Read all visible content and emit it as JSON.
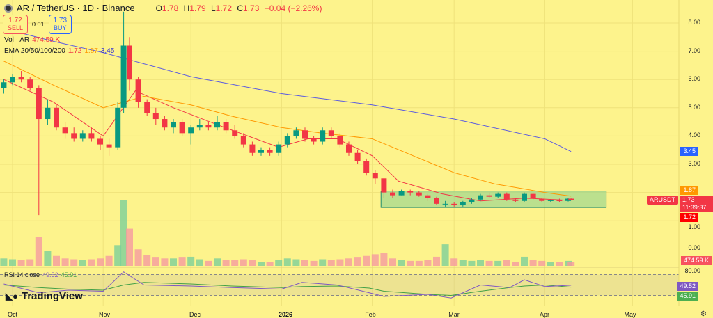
{
  "header": {
    "symbol": "AR / TetherUS · 1D · Binance",
    "o_label": "O",
    "o": "1.78",
    "h_label": "H",
    "h": "1.79",
    "l_label": "L",
    "l": "1.72",
    "c_label": "C",
    "c": "1.73",
    "change": "−0.04 (−2.26%)"
  },
  "trade": {
    "sell_price": "1.72",
    "sell_label": "SELL",
    "spread": "0.01",
    "buy_price": "1.73",
    "buy_label": "BUY"
  },
  "volume_legend": {
    "label": "Vol · AR",
    "value": "474.59 K"
  },
  "ema_legend": {
    "label": "EMA 20/50/100/200",
    "v1": "1.72",
    "v2": "1.87",
    "v3": "3.45"
  },
  "rsi_legend": {
    "label": "RSI 14 close",
    "rsi": "49.52",
    "ma": "45.91"
  },
  "price_axis": {
    "ticks": [
      "8.00",
      "7.00",
      "6.00",
      "5.00",
      "4.00",
      "3.00",
      "1.00"
    ],
    "volume_tick": "0.00",
    "rsi_tick": "80.00"
  },
  "tags": {
    "ema50": "1.87",
    "symbol": "ARUSDT",
    "last": "1.73",
    "countdown": "11:39:37",
    "ema20": "1.72",
    "ema200": "3.45",
    "volume": "474.59 K",
    "rsi": "49.52",
    "rsi_ma": "45.91"
  },
  "time_axis": [
    "Oct",
    "Nov",
    "Dec",
    "2026",
    "Feb",
    "Mar",
    "Apr",
    "May"
  ],
  "branding": "TradingView",
  "colors": {
    "background": "#fdf38c",
    "up": "#089981",
    "down": "#f23645",
    "ema20": "#f23645",
    "ema50": "#ff9800",
    "ema200": "#5b5be0",
    "rsi": "#7e57c2",
    "rsi_ma": "#43a047",
    "zone": "#7fd18a"
  },
  "chart_data": {
    "type": "candlestick",
    "ylim": [
      0.5,
      8.5
    ],
    "candles": [
      [
        "2025-09-28",
        5.7,
        6.0,
        5.5,
        5.9,
        900
      ],
      [
        "2025-10-01",
        5.9,
        6.2,
        5.8,
        6.1,
        800
      ],
      [
        "2025-10-04",
        6.1,
        6.3,
        5.9,
        6.0,
        700
      ],
      [
        "2025-10-07",
        6.0,
        6.1,
        5.6,
        5.7,
        800
      ],
      [
        "2025-10-10",
        5.7,
        5.8,
        1.2,
        4.6,
        3500
      ],
      [
        "2025-10-13",
        4.6,
        5.3,
        4.4,
        5.0,
        1800
      ],
      [
        "2025-10-16",
        5.0,
        5.1,
        4.2,
        4.3,
        1200
      ],
      [
        "2025-10-19",
        4.3,
        4.5,
        3.9,
        4.1,
        900
      ],
      [
        "2025-10-22",
        4.1,
        4.3,
        3.8,
        3.9,
        800
      ],
      [
        "2025-10-25",
        3.9,
        4.2,
        3.8,
        4.1,
        700
      ],
      [
        "2025-10-28",
        4.1,
        4.3,
        3.8,
        3.9,
        800
      ],
      [
        "2025-10-31",
        3.9,
        4.0,
        3.5,
        3.7,
        900
      ],
      [
        "2025-11-03",
        3.7,
        3.9,
        3.3,
        3.6,
        1200
      ],
      [
        "2025-11-06",
        3.6,
        5.2,
        3.5,
        5.0,
        2500
      ],
      [
        "2025-11-08",
        5.0,
        8.4,
        4.8,
        7.2,
        8000
      ],
      [
        "2025-11-10",
        7.2,
        7.5,
        5.6,
        6.0,
        4500
      ],
      [
        "2025-11-13",
        6.0,
        6.1,
        5.0,
        5.2,
        2000
      ],
      [
        "2025-11-16",
        5.2,
        5.3,
        4.7,
        4.8,
        1300
      ],
      [
        "2025-11-19",
        4.8,
        5.0,
        4.4,
        4.6,
        1000
      ],
      [
        "2025-11-22",
        4.6,
        4.7,
        4.2,
        4.3,
        900
      ],
      [
        "2025-11-25",
        4.3,
        4.6,
        4.1,
        4.5,
        900
      ],
      [
        "2025-11-28",
        4.5,
        4.6,
        4.0,
        4.1,
        1000
      ],
      [
        "2025-12-01",
        4.1,
        4.4,
        3.7,
        4.3,
        1100
      ],
      [
        "2025-12-04",
        4.3,
        4.6,
        4.2,
        4.4,
        800
      ],
      [
        "2025-12-07",
        4.4,
        4.5,
        4.2,
        4.3,
        600
      ],
      [
        "2025-12-10",
        4.3,
        4.7,
        4.2,
        4.5,
        900
      ],
      [
        "2025-12-13",
        4.5,
        4.6,
        4.1,
        4.2,
        700
      ],
      [
        "2025-12-16",
        4.2,
        4.4,
        3.9,
        4.0,
        700
      ],
      [
        "2025-12-19",
        4.0,
        4.1,
        3.6,
        3.7,
        800
      ],
      [
        "2025-12-22",
        3.7,
        3.8,
        3.3,
        3.4,
        700
      ],
      [
        "2025-12-25",
        3.4,
        3.6,
        3.3,
        3.5,
        500
      ],
      [
        "2025-12-28",
        3.5,
        3.6,
        3.3,
        3.4,
        500
      ],
      [
        "2025-12-31",
        3.4,
        3.8,
        3.3,
        3.7,
        700
      ],
      [
        "2026-01-03",
        3.7,
        4.1,
        3.6,
        4.0,
        900
      ],
      [
        "2026-01-06",
        4.0,
        4.3,
        3.9,
        4.2,
        800
      ],
      [
        "2026-01-09",
        4.2,
        4.3,
        3.8,
        3.9,
        700
      ],
      [
        "2026-01-12",
        3.9,
        4.0,
        3.7,
        3.8,
        600
      ],
      [
        "2026-01-15",
        3.8,
        4.3,
        3.7,
        4.2,
        800
      ],
      [
        "2026-01-18",
        4.2,
        4.3,
        3.9,
        4.0,
        700
      ],
      [
        "2026-01-21",
        4.0,
        4.1,
        3.6,
        3.7,
        800
      ],
      [
        "2026-01-24",
        3.7,
        3.8,
        3.3,
        3.4,
        900
      ],
      [
        "2026-01-27",
        3.4,
        3.5,
        3.0,
        3.1,
        1000
      ],
      [
        "2026-01-30",
        3.1,
        3.2,
        2.6,
        2.7,
        1200
      ],
      [
        "2026-02-02",
        2.7,
        2.8,
        2.3,
        2.5,
        1400
      ],
      [
        "2026-02-05",
        2.5,
        2.5,
        1.8,
        2.0,
        1600
      ],
      [
        "2026-02-08",
        2.0,
        2.1,
        1.8,
        1.9,
        900
      ],
      [
        "2026-02-11",
        1.9,
        2.1,
        1.9,
        2.05,
        700
      ],
      [
        "2026-02-14",
        2.05,
        2.1,
        1.9,
        2.0,
        600
      ],
      [
        "2026-02-17",
        2.0,
        2.05,
        1.85,
        1.9,
        600
      ],
      [
        "2026-02-20",
        1.9,
        1.95,
        1.7,
        1.8,
        700
      ],
      [
        "2026-02-23",
        1.8,
        1.85,
        1.55,
        1.6,
        1100
      ],
      [
        "2026-02-26",
        1.6,
        1.7,
        1.5,
        1.6,
        2600
      ],
      [
        "2026-03-01",
        1.6,
        1.65,
        1.5,
        1.55,
        900
      ],
      [
        "2026-03-04",
        1.55,
        1.7,
        1.5,
        1.65,
        700
      ],
      [
        "2026-03-07",
        1.65,
        1.8,
        1.6,
        1.75,
        600
      ],
      [
        "2026-03-10",
        1.75,
        1.95,
        1.7,
        1.9,
        700
      ],
      [
        "2026-03-13",
        1.9,
        2.0,
        1.8,
        1.85,
        600
      ],
      [
        "2026-03-16",
        1.85,
        2.0,
        1.8,
        1.95,
        600
      ],
      [
        "2026-03-19",
        1.95,
        2.0,
        1.7,
        1.75,
        700
      ],
      [
        "2026-03-22",
        1.75,
        1.8,
        1.65,
        1.7,
        500
      ],
      [
        "2026-03-25",
        1.7,
        2.0,
        1.65,
        1.95,
        1100
      ],
      [
        "2026-03-28",
        1.95,
        1.96,
        1.75,
        1.78,
        700
      ],
      [
        "2026-03-31",
        1.78,
        1.8,
        1.65,
        1.7,
        600
      ],
      [
        "2026-04-03",
        1.7,
        1.75,
        1.65,
        1.72,
        500
      ],
      [
        "2026-04-06",
        1.72,
        1.78,
        1.66,
        1.7,
        500
      ],
      [
        "2026-04-09",
        1.7,
        1.8,
        1.68,
        1.78,
        600
      ],
      [
        "2026-04-10",
        1.78,
        1.79,
        1.72,
        1.73,
        474.59
      ]
    ],
    "ema": [
      {
        "name": "EMA 20",
        "color": "#f23645",
        "points": [
          [
            "2025-09-28",
            6.0
          ],
          [
            "2025-10-15",
            5.2
          ],
          [
            "2025-11-01",
            4.0
          ],
          [
            "2025-11-12",
            5.6
          ],
          [
            "2025-11-25",
            5.0
          ],
          [
            "2025-12-10",
            4.4
          ],
          [
            "2025-12-31",
            3.6
          ],
          [
            "2026-01-10",
            3.9
          ],
          [
            "2026-01-20",
            3.9
          ],
          [
            "2026-02-01",
            3.3
          ],
          [
            "2026-02-10",
            2.4
          ],
          [
            "2026-02-25",
            1.95
          ],
          [
            "2026-03-10",
            1.7
          ],
          [
            "2026-03-25",
            1.8
          ],
          [
            "2026-04-10",
            1.72
          ]
        ]
      },
      {
        "name": "EMA 50",
        "color": "#ff9800",
        "points": [
          [
            "2025-09-28",
            6.65
          ],
          [
            "2025-10-15",
            5.8
          ],
          [
            "2025-11-01",
            5.0
          ],
          [
            "2025-11-15",
            5.4
          ],
          [
            "2025-12-01",
            5.1
          ],
          [
            "2025-12-15",
            4.7
          ],
          [
            "2026-01-01",
            4.3
          ],
          [
            "2026-01-15",
            4.1
          ],
          [
            "2026-02-01",
            3.9
          ],
          [
            "2026-02-15",
            3.3
          ],
          [
            "2026-03-01",
            2.7
          ],
          [
            "2026-03-15",
            2.3
          ],
          [
            "2026-04-01",
            2.0
          ],
          [
            "2026-04-10",
            1.87
          ]
        ]
      },
      {
        "name": "EMA 200",
        "color": "#5b5be0",
        "points": [
          [
            "2025-09-28",
            7.8
          ],
          [
            "2025-10-15",
            7.35
          ],
          [
            "2025-11-01",
            6.95
          ],
          [
            "2025-12-01",
            6.1
          ],
          [
            "2026-01-01",
            5.5
          ],
          [
            "2026-02-01",
            5.1
          ],
          [
            "2026-03-01",
            4.6
          ],
          [
            "2026-04-01",
            3.9
          ],
          [
            "2026-04-10",
            3.45
          ]
        ]
      }
    ],
    "zone": {
      "from": "2026-02-04",
      "to": "2026-04-22",
      "top": 2.05,
      "bottom": 1.47
    },
    "last_price": 1.73,
    "rsi": {
      "ylim": [
        20,
        80
      ],
      "bands": [
        70,
        30
      ],
      "points": [
        [
          "2025-09-28",
          52,
          50
        ],
        [
          "2025-10-10",
          35,
          45
        ],
        [
          "2025-10-20",
          40,
          42
        ],
        [
          "2025-11-01",
          38,
          40
        ],
        [
          "2025-11-08",
          75,
          50
        ],
        [
          "2025-11-15",
          50,
          55
        ],
        [
          "2025-12-01",
          48,
          52
        ],
        [
          "2025-12-15",
          45,
          48
        ],
        [
          "2026-01-01",
          42,
          45
        ],
        [
          "2026-01-08",
          55,
          47
        ],
        [
          "2026-01-20",
          50,
          48
        ],
        [
          "2026-01-31",
          35,
          44
        ],
        [
          "2026-02-05",
          28,
          38
        ],
        [
          "2026-02-20",
          32,
          32
        ],
        [
          "2026-02-28",
          25,
          30
        ],
        [
          "2026-03-10",
          50,
          38
        ],
        [
          "2026-03-20",
          45,
          45
        ],
        [
          "2026-03-25",
          60,
          48
        ],
        [
          "2026-04-01",
          47,
          50
        ],
        [
          "2026-04-10",
          49.52,
          45.91
        ]
      ]
    }
  }
}
